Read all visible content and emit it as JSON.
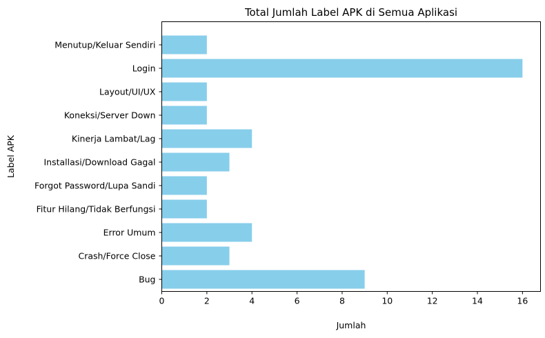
{
  "chart_data": {
    "type": "bar",
    "orientation": "horizontal",
    "title": "Total Jumlah Label APK di Semua Aplikasi",
    "xlabel": "Jumlah",
    "ylabel": "Label APK",
    "categories": [
      "Bug",
      "Crash/Force Close",
      "Error Umum",
      "Fitur Hilang/Tidak Berfungsi",
      "Forgot Password/Lupa Sandi",
      "Installasi/Download Gagal",
      "Kinerja Lambat/Lag",
      "Koneksi/Server Down",
      "Layout/UI/UX",
      "Login",
      "Menutup/Keluar Sendiri"
    ],
    "values": [
      9,
      3,
      4,
      2,
      2,
      3,
      4,
      2,
      2,
      16,
      2
    ],
    "xlim": [
      0,
      16.8
    ],
    "xticks": [
      0,
      2,
      4,
      6,
      8,
      10,
      12,
      14,
      16
    ],
    "bar_color": "#87ceeb",
    "grid": false,
    "legend": null
  }
}
